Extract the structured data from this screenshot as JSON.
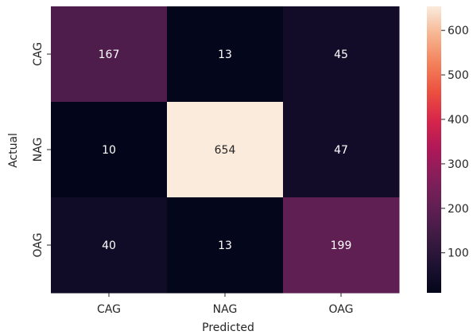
{
  "chart_data": {
    "type": "heatmap",
    "title": "",
    "xlabel": "Predicted",
    "ylabel": "Actual",
    "x_categories": [
      "CAG",
      "NAG",
      "OAG"
    ],
    "y_categories": [
      "CAG",
      "NAG",
      "OAG"
    ],
    "values": [
      [
        167,
        13,
        45
      ],
      [
        10,
        654,
        47
      ],
      [
        40,
        13,
        199
      ]
    ],
    "colorbar": {
      "min": 10,
      "max": 654,
      "ticks": [
        100,
        200,
        300,
        400,
        500,
        600
      ],
      "colormap": "rocket"
    },
    "annotations": true,
    "grid": false
  }
}
